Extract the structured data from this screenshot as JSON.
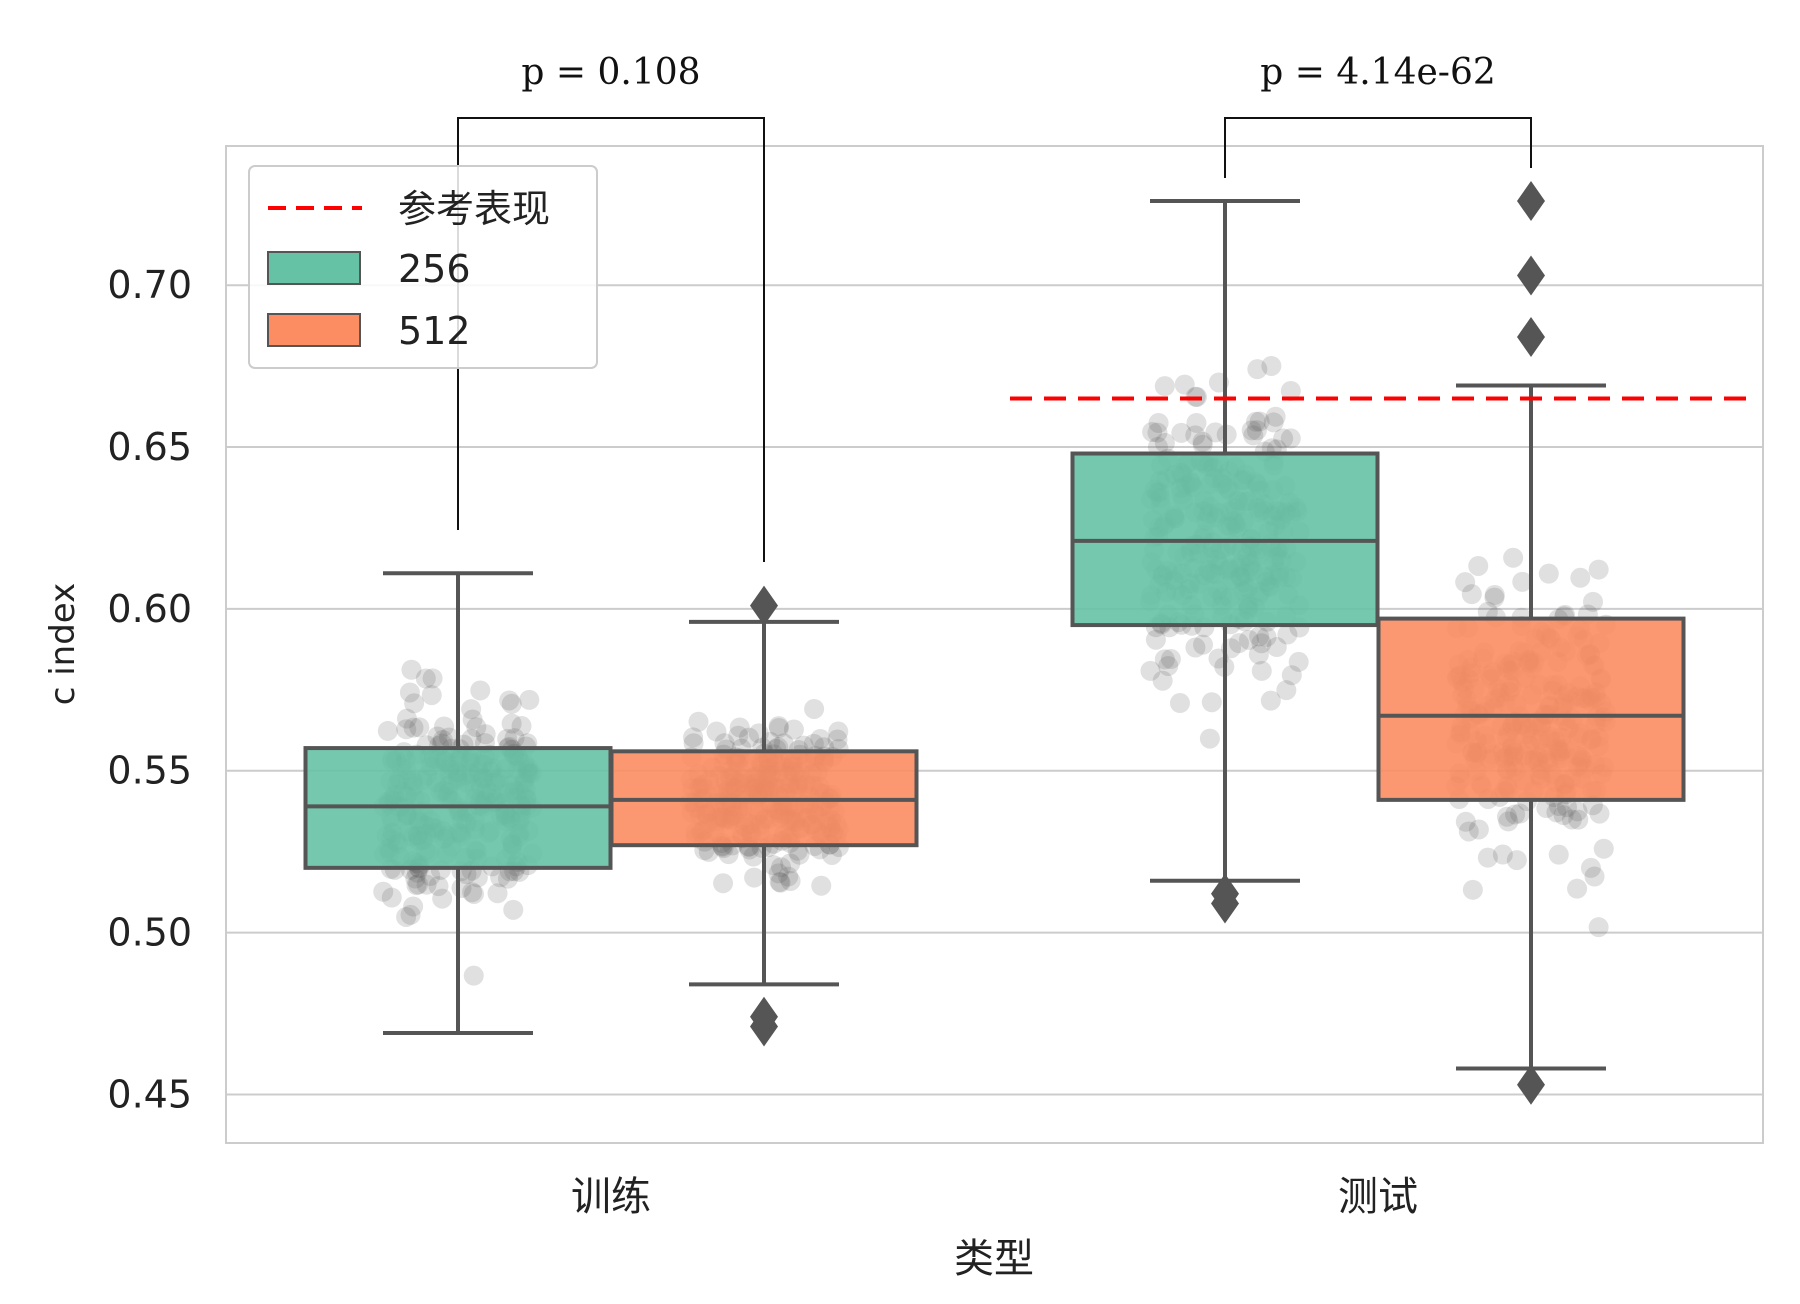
{
  "chart_data": {
    "type": "boxplot",
    "xlabel": "类型",
    "ylabel": "c index",
    "ylim": [
      0.435,
      0.743
    ],
    "yticks": [
      "0.45",
      "0.50",
      "0.55",
      "0.60",
      "0.65",
      "0.70"
    ],
    "yticks_values": [
      0.45,
      0.5,
      0.55,
      0.6,
      0.65,
      0.7
    ],
    "grid": true,
    "legend_position": "top-left",
    "categories": [
      "训练",
      "测试"
    ],
    "series": [
      {
        "name": "256",
        "color": "#66c2a5",
        "boxes": [
          {
            "category": "训练",
            "whislo": 0.469,
            "q1": 0.52,
            "median": 0.539,
            "q3": 0.557,
            "whishi": 0.611,
            "fliers": []
          },
          {
            "category": "测试",
            "whislo": 0.516,
            "q1": 0.595,
            "median": 0.621,
            "q3": 0.648,
            "whishi": 0.726,
            "fliers": [
              0.509,
              0.512
            ]
          }
        ]
      },
      {
        "name": "512",
        "color": "#fc8d62",
        "boxes": [
          {
            "category": "训练",
            "whislo": 0.484,
            "q1": 0.527,
            "median": 0.541,
            "q3": 0.556,
            "whishi": 0.596,
            "fliers": [
              0.601,
              0.471,
              0.474
            ]
          },
          {
            "category": "测试",
            "whislo": 0.458,
            "q1": 0.541,
            "median": 0.567,
            "q3": 0.597,
            "whishi": 0.669,
            "fliers": [
              0.726,
              0.703,
              0.684,
              0.453
            ]
          }
        ]
      }
    ],
    "reference_line": {
      "name": "参考表现",
      "value": 0.665,
      "color": "#ff0000",
      "style": "dashed"
    },
    "annotations": [
      {
        "category": "训练",
        "text": "p = 0.108"
      },
      {
        "category": "测试",
        "text": "p = 4.14e-62"
      }
    ]
  }
}
